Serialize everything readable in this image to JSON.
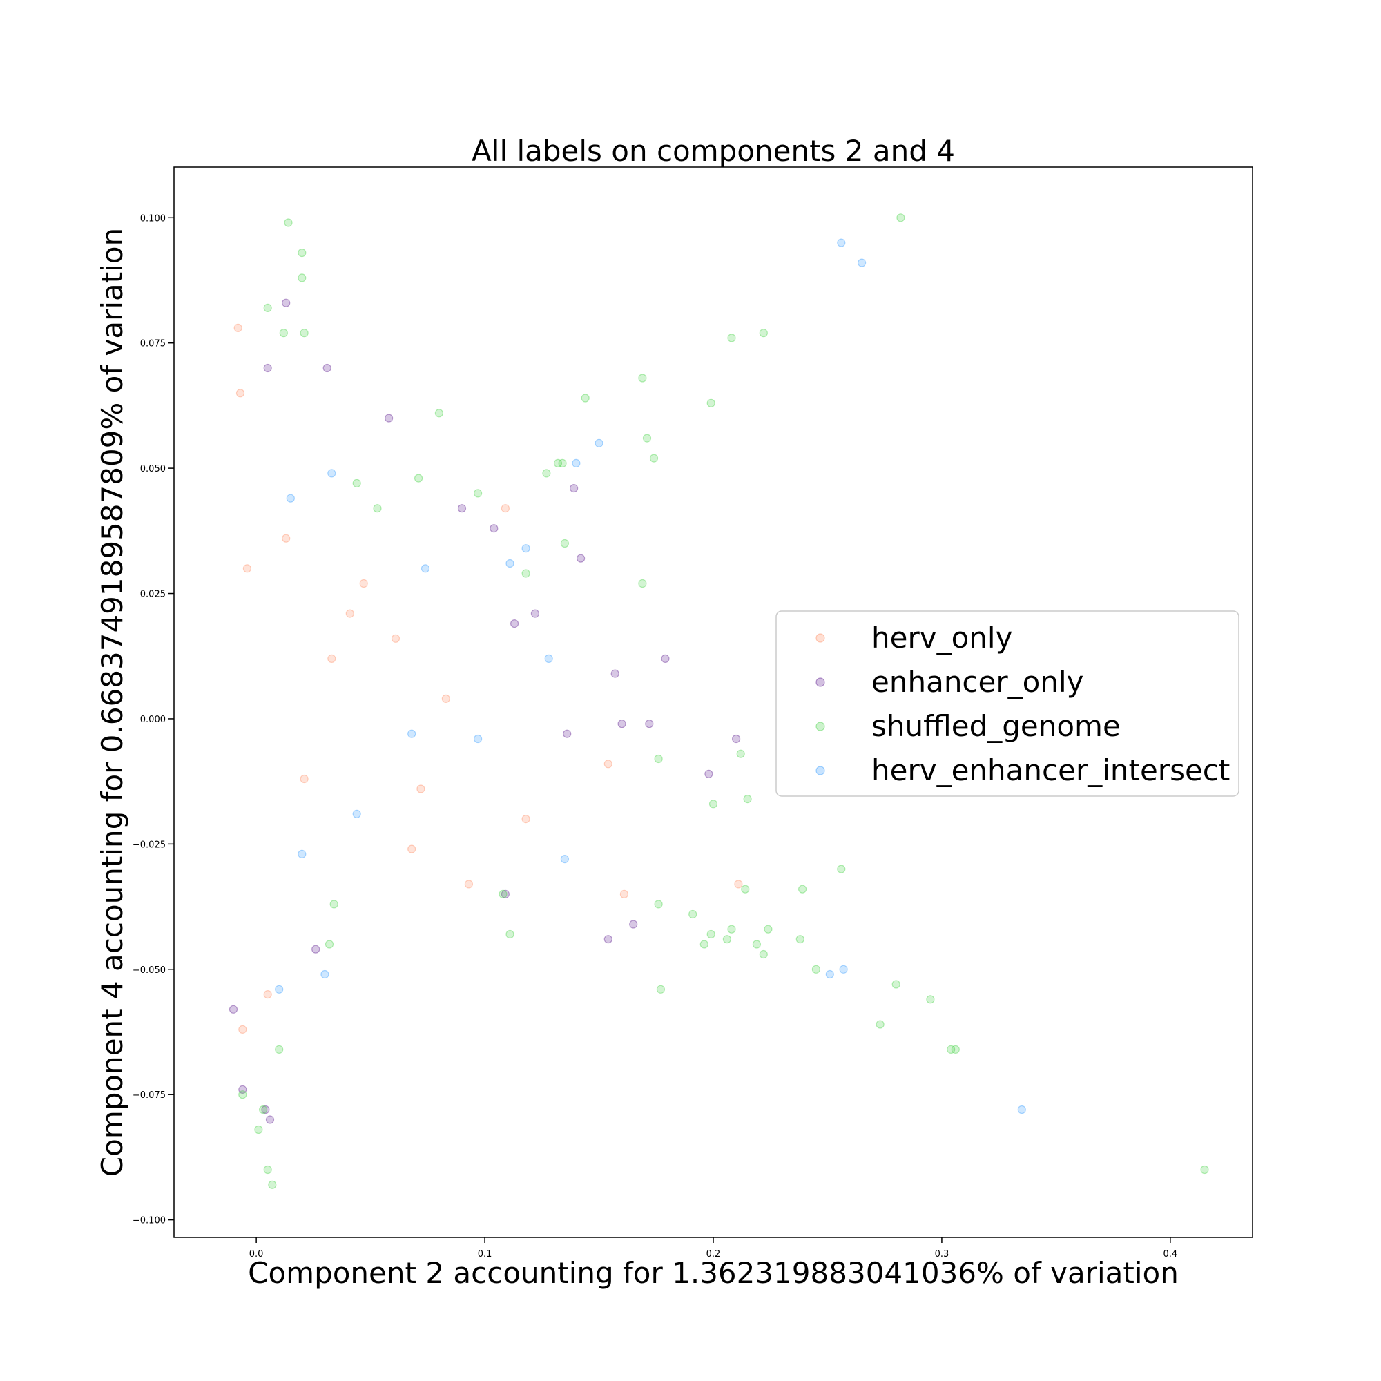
{
  "chart_data": {
    "type": "scatter",
    "title": "All labels on components 2 and 4",
    "xlabel": "Component 2 accounting for 1.362319883041036% of variation",
    "ylabel": "Component 4 accounting for 0.6683749189587809% of variation",
    "xlim": [
      -0.036,
      0.436
    ],
    "ylim": [
      -0.1035,
      0.1101
    ],
    "xticks": [
      {
        "value": 0.0,
        "label": "0.0"
      },
      {
        "value": 0.1,
        "label": "0.1"
      },
      {
        "value": 0.2,
        "label": "0.2"
      },
      {
        "value": 0.3,
        "label": "0.3"
      },
      {
        "value": 0.4,
        "label": "0.4"
      }
    ],
    "yticks": [
      {
        "value": 0.1,
        "label": "0.100"
      },
      {
        "value": 0.075,
        "label": "0.075"
      },
      {
        "value": 0.05,
        "label": "0.050"
      },
      {
        "value": 0.025,
        "label": "0.025"
      },
      {
        "value": 0.0,
        "label": "0.000"
      },
      {
        "value": -0.025,
        "label": "−0.025"
      },
      {
        "value": -0.05,
        "label": "−0.050"
      },
      {
        "value": -0.075,
        "label": "−0.075"
      },
      {
        "value": -0.1,
        "label": "−0.100"
      }
    ],
    "grid": false,
    "legend_position": "center-right",
    "series": [
      {
        "name": "herv_only",
        "color": "#ff7f50",
        "points": [
          [
            -0.008,
            0.078
          ],
          [
            -0.007,
            0.065
          ],
          [
            0.047,
            0.027
          ],
          [
            0.093,
            -0.033
          ],
          [
            0.109,
            0.042
          ],
          [
            0.061,
            0.016
          ],
          [
            0.033,
            0.012
          ],
          [
            -0.006,
            -0.062
          ],
          [
            0.013,
            0.036
          ],
          [
            0.083,
            0.004
          ],
          [
            0.161,
            -0.035
          ],
          [
            0.068,
            -0.026
          ],
          [
            0.211,
            -0.033
          ],
          [
            0.005,
            -0.055
          ],
          [
            0.041,
            0.021
          ],
          [
            0.072,
            -0.014
          ],
          [
            0.154,
            -0.009
          ],
          [
            -0.004,
            0.03
          ],
          [
            0.021,
            -0.012
          ],
          [
            0.118,
            -0.02
          ]
        ]
      },
      {
        "name": "enhancer_only",
        "color": "#4b0082",
        "points": [
          [
            0.058,
            0.06
          ],
          [
            0.139,
            0.046
          ],
          [
            0.179,
            0.012
          ],
          [
            0.172,
            -0.001
          ],
          [
            0.16,
            -0.001
          ],
          [
            0.21,
            -0.004
          ],
          [
            0.198,
            -0.011
          ],
          [
            0.026,
            -0.046
          ],
          [
            0.09,
            0.042
          ],
          [
            0.104,
            0.038
          ],
          [
            0.142,
            0.032
          ],
          [
            0.122,
            0.021
          ],
          [
            0.113,
            0.019
          ],
          [
            0.154,
            -0.044
          ],
          [
            0.013,
            0.083
          ],
          [
            0.005,
            0.07
          ],
          [
            -0.01,
            -0.058
          ],
          [
            -0.006,
            -0.074
          ],
          [
            0.004,
            -0.078
          ],
          [
            0.006,
            -0.08
          ],
          [
            0.157,
            0.009
          ],
          [
            0.136,
            -0.003
          ],
          [
            0.109,
            -0.035
          ],
          [
            0.165,
            -0.041
          ],
          [
            0.031,
            0.07
          ]
        ]
      },
      {
        "name": "shuffled_genome",
        "color": "#32cd32",
        "points": [
          [
            0.014,
            0.099
          ],
          [
            0.02,
            0.093
          ],
          [
            0.02,
            0.088
          ],
          [
            0.282,
            0.1
          ],
          [
            0.208,
            0.076
          ],
          [
            0.222,
            0.077
          ],
          [
            0.169,
            0.068
          ],
          [
            0.199,
            0.063
          ],
          [
            0.144,
            0.064
          ],
          [
            0.171,
            0.056
          ],
          [
            0.174,
            0.052
          ],
          [
            0.08,
            0.061
          ],
          [
            0.005,
            0.082
          ],
          [
            0.021,
            0.077
          ],
          [
            0.012,
            0.077
          ],
          [
            0.169,
            0.027
          ],
          [
            0.415,
            -0.09
          ],
          [
            0.304,
            -0.066
          ],
          [
            0.306,
            -0.066
          ],
          [
            0.295,
            -0.056
          ],
          [
            0.28,
            -0.053
          ],
          [
            0.273,
            -0.061
          ],
          [
            0.256,
            -0.03
          ],
          [
            0.245,
            -0.05
          ],
          [
            0.239,
            -0.034
          ],
          [
            0.238,
            -0.044
          ],
          [
            0.224,
            -0.042
          ],
          [
            0.222,
            -0.047
          ],
          [
            0.219,
            -0.045
          ],
          [
            0.215,
            -0.016
          ],
          [
            0.214,
            -0.034
          ],
          [
            0.212,
            -0.007
          ],
          [
            0.208,
            -0.042
          ],
          [
            0.206,
            -0.044
          ],
          [
            0.199,
            -0.043
          ],
          [
            0.2,
            -0.017
          ],
          [
            0.196,
            -0.045
          ],
          [
            0.191,
            -0.039
          ],
          [
            0.177,
            -0.054
          ],
          [
            0.176,
            -0.008
          ],
          [
            0.176,
            -0.037
          ],
          [
            0.007,
            -0.093
          ],
          [
            0.005,
            -0.09
          ],
          [
            0.001,
            -0.082
          ],
          [
            0.003,
            -0.078
          ],
          [
            -0.006,
            -0.075
          ],
          [
            0.01,
            -0.066
          ],
          [
            0.034,
            -0.037
          ],
          [
            0.032,
            -0.045
          ],
          [
            0.108,
            -0.035
          ],
          [
            0.111,
            -0.043
          ],
          [
            0.135,
            0.035
          ],
          [
            0.134,
            0.051
          ],
          [
            0.132,
            0.051
          ],
          [
            0.127,
            0.049
          ],
          [
            0.071,
            0.048
          ],
          [
            0.044,
            0.047
          ],
          [
            0.053,
            0.042
          ],
          [
            0.097,
            0.045
          ],
          [
            0.118,
            0.029
          ]
        ]
      },
      {
        "name": "herv_enhancer_intersect",
        "color": "#1e90ff",
        "points": [
          [
            0.256,
            0.095
          ],
          [
            0.265,
            0.091
          ],
          [
            0.335,
            -0.078
          ],
          [
            0.257,
            -0.05
          ],
          [
            0.251,
            -0.051
          ],
          [
            0.03,
            -0.051
          ],
          [
            0.15,
            0.055
          ],
          [
            0.14,
            0.051
          ],
          [
            0.128,
            0.012
          ],
          [
            0.118,
            0.034
          ],
          [
            0.033,
            0.049
          ],
          [
            0.015,
            0.044
          ],
          [
            0.01,
            -0.054
          ],
          [
            0.02,
            -0.027
          ],
          [
            0.097,
            -0.004
          ],
          [
            0.135,
            -0.028
          ],
          [
            0.074,
            0.03
          ],
          [
            0.068,
            -0.003
          ],
          [
            0.044,
            -0.019
          ],
          [
            0.111,
            0.031
          ]
        ]
      }
    ]
  }
}
